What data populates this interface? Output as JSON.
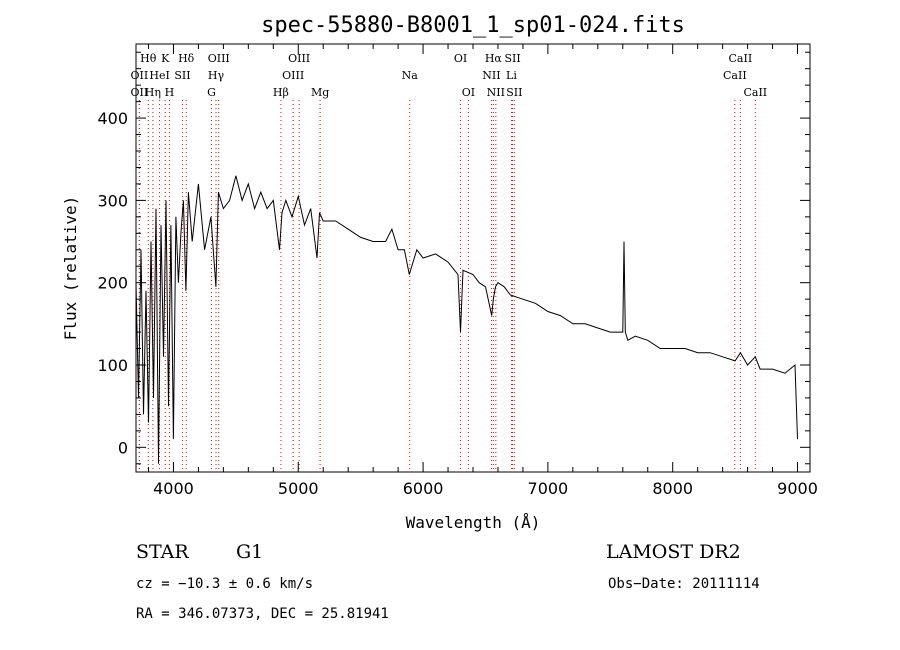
{
  "chart_data": {
    "type": "line",
    "title": "spec-55880-B8001_1_sp01-024.fits",
    "xlabel": "Wavelength (Å)",
    "ylabel": "Flux (relative)",
    "xlim": [
      3700,
      9100
    ],
    "ylim": [
      -30,
      490
    ],
    "x_ticks": [
      4000,
      5000,
      6000,
      7000,
      8000,
      9000
    ],
    "y_ticks": [
      0,
      100,
      200,
      300,
      400
    ],
    "grid": false,
    "series": [
      {
        "color": "#000000",
        "x": [
          3700,
          3720,
          3740,
          3760,
          3780,
          3800,
          3820,
          3840,
          3860,
          3880,
          3900,
          3920,
          3940,
          3960,
          3980,
          4000,
          4020,
          4040,
          4060,
          4080,
          4100,
          4120,
          4150,
          4200,
          4250,
          4300,
          4340,
          4360,
          4400,
          4450,
          4500,
          4550,
          4600,
          4650,
          4700,
          4750,
          4800,
          4850,
          4870,
          4900,
          4950,
          5000,
          5050,
          5100,
          5150,
          5170,
          5200,
          5300,
          5400,
          5500,
          5600,
          5700,
          5750,
          5800,
          5850,
          5890,
          5950,
          6000,
          6100,
          6200,
          6280,
          6300,
          6320,
          6400,
          6450,
          6500,
          6550,
          6563,
          6580,
          6600,
          6650,
          6700,
          6800,
          6900,
          7000,
          7100,
          7200,
          7300,
          7400,
          7500,
          7580,
          7600,
          7610,
          7620,
          7640,
          7700,
          7800,
          7900,
          8000,
          8100,
          8200,
          8300,
          8400,
          8500,
          8542,
          8600,
          8662,
          8700,
          8800,
          8900,
          8980,
          9000
        ],
        "y": [
          200,
          60,
          240,
          40,
          190,
          30,
          250,
          60,
          290,
          -20,
          270,
          110,
          300,
          50,
          270,
          10,
          280,
          200,
          260,
          300,
          190,
          310,
          250,
          320,
          240,
          280,
          195,
          310,
          290,
          300,
          330,
          300,
          320,
          290,
          310,
          290,
          300,
          240,
          285,
          300,
          280,
          305,
          270,
          290,
          230,
          285,
          275,
          275,
          265,
          255,
          250,
          250,
          265,
          240,
          240,
          210,
          240,
          230,
          235,
          225,
          210,
          140,
          215,
          210,
          200,
          195,
          160,
          180,
          195,
          200,
          195,
          185,
          180,
          175,
          165,
          160,
          150,
          150,
          145,
          140,
          140,
          140,
          250,
          140,
          130,
          135,
          130,
          120,
          120,
          120,
          115,
          115,
          110,
          105,
          115,
          100,
          110,
          95,
          95,
          90,
          100,
          10
        ]
      }
    ],
    "spectral_lines": [
      {
        "label": "Hθ",
        "x": 3798,
        "row": 0,
        "anchor": "middle"
      },
      {
        "label": "K",
        "x": 3934,
        "row": 0,
        "anchor": "middle"
      },
      {
        "label": "Hδ",
        "x": 4102,
        "row": 0,
        "anchor": "middle"
      },
      {
        "label": "OIII",
        "x": 4363,
        "row": 0,
        "anchor": "middle"
      },
      {
        "label": "OIII",
        "x": 5007,
        "row": 0,
        "anchor": "middle"
      },
      {
        "label": "OI",
        "x": 6300,
        "row": 0,
        "anchor": "middle"
      },
      {
        "label": "Hα",
        "x": 6563,
        "row": 0,
        "anchor": "middle"
      },
      {
        "label": "SII",
        "x": 6717,
        "row": 0,
        "anchor": "middle"
      },
      {
        "label": "CaII",
        "x": 8542,
        "row": 0,
        "anchor": "middle"
      },
      {
        "label": "OII",
        "x": 3727,
        "row": 1,
        "anchor": "middle"
      },
      {
        "label": "HeI",
        "x": 3889,
        "row": 1,
        "anchor": "middle"
      },
      {
        "label": "SII",
        "x": 4072,
        "row": 1,
        "anchor": "middle"
      },
      {
        "label": "Hγ",
        "x": 4341,
        "row": 1,
        "anchor": "middle"
      },
      {
        "label": "OIII",
        "x": 4959,
        "row": 1,
        "anchor": "middle"
      },
      {
        "label": "Na",
        "x": 5893,
        "row": 1,
        "anchor": "middle"
      },
      {
        "label": "NII",
        "x": 6548,
        "row": 1,
        "anchor": "middle"
      },
      {
        "label": "Li",
        "x": 6708,
        "row": 1,
        "anchor": "middle"
      },
      {
        "label": "CaII",
        "x": 8498,
        "row": 1,
        "anchor": "middle"
      },
      {
        "label": "OII",
        "x": 3727,
        "row": 2,
        "anchor": "middle"
      },
      {
        "label": "Hη",
        "x": 3835,
        "row": 2,
        "anchor": "middle"
      },
      {
        "label": "H",
        "x": 3968,
        "row": 2,
        "anchor": "middle"
      },
      {
        "label": "G",
        "x": 4305,
        "row": 2,
        "anchor": "middle"
      },
      {
        "label": "Hβ",
        "x": 4861,
        "row": 2,
        "anchor": "middle"
      },
      {
        "label": "Mg",
        "x": 5175,
        "row": 2,
        "anchor": "middle"
      },
      {
        "label": "OI",
        "x": 6363,
        "row": 2,
        "anchor": "middle"
      },
      {
        "label": "NII",
        "x": 6583,
        "row": 2,
        "anchor": "middle"
      },
      {
        "label": "SII",
        "x": 6731,
        "row": 2,
        "anchor": "middle"
      },
      {
        "label": "CaII",
        "x": 8662,
        "row": 2,
        "anchor": "middle"
      }
    ],
    "line_color": "#ff0000"
  },
  "info": {
    "object_class": "STAR",
    "subclass": "G1",
    "survey": "LAMOST DR2",
    "cz": "cz = −10.3 ± 0.6 km/s",
    "obs_date": "Obs−Date: 20111114",
    "coords": "RA = 346.07373, DEC =  25.81941"
  }
}
